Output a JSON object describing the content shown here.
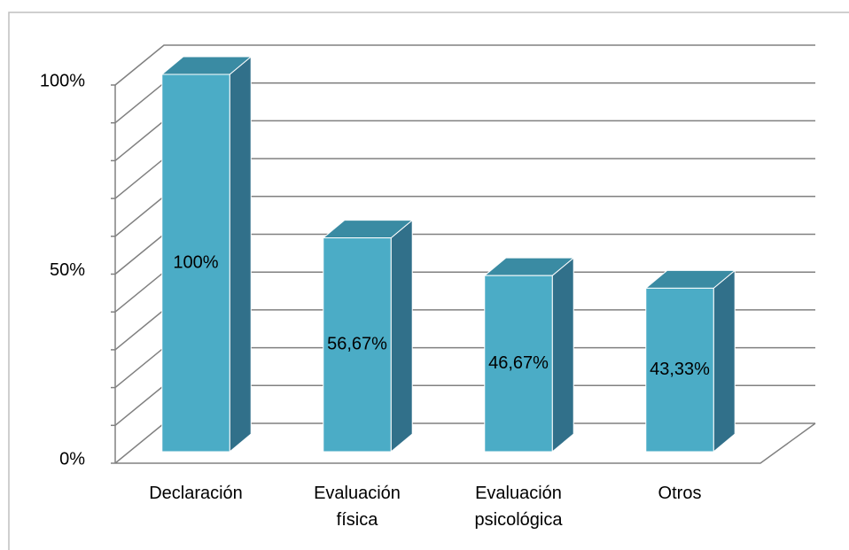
{
  "chart_data": {
    "type": "bar3d",
    "categories": [
      "Declaración",
      "Evaluación física",
      "Evaluación psicológica",
      "Otros"
    ],
    "values": [
      100,
      56.67,
      46.67,
      43.33
    ],
    "value_labels": [
      "100%",
      "56,67%",
      "46,67%",
      "43,33%"
    ],
    "color": "#4bacc6",
    "ylim": [
      0,
      100
    ],
    "yticks": [
      {
        "value": 0,
        "label": "0%"
      },
      {
        "value": 50,
        "label": "50%"
      },
      {
        "value": 100,
        "label": "100%"
      }
    ],
    "minor_yticks": [
      0,
      10,
      20,
      30,
      40,
      50,
      60,
      70,
      80,
      90,
      100
    ],
    "grid": true
  }
}
